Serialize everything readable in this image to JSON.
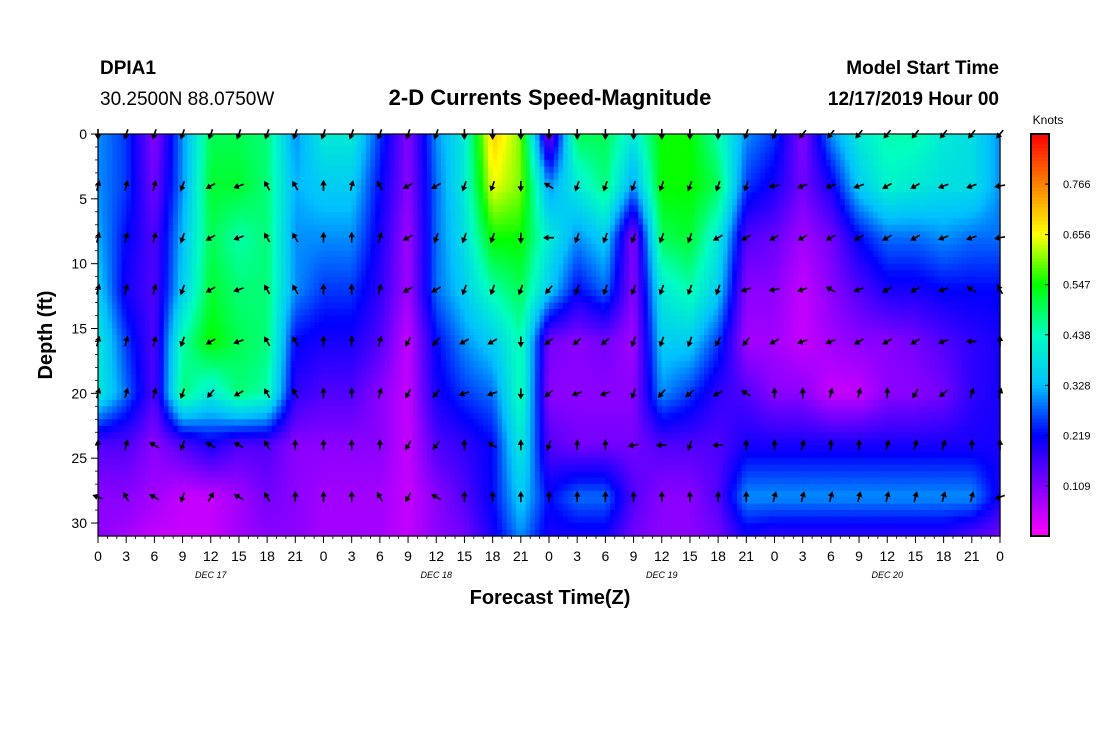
{
  "header": {
    "station": "DPIA1",
    "coords": "30.2500N 88.0750W",
    "title": "2-D Currents Speed-Magnitude",
    "start_label": "Model Start Time",
    "start_value": "12/17/2019 Hour 00"
  },
  "colorbar": {
    "units": "Knots",
    "ticks": [
      "0.766",
      "0.656",
      "0.547",
      "0.438",
      "0.328",
      "0.219",
      "0.109"
    ],
    "tick_values": [
      0.766,
      0.656,
      0.547,
      0.438,
      0.328,
      0.219,
      0.109
    ],
    "range": [
      0,
      0.875
    ],
    "colors": [
      "#ff00ff",
      "#8000ff",
      "#0000ff",
      "#00c0ff",
      "#00ffc0",
      "#00ff00",
      "#ffff00",
      "#ff8000",
      "#ff0000"
    ]
  },
  "chart_data": {
    "type": "heatmap",
    "title": "2-D Currents Speed-Magnitude",
    "xlabel": "Forecast Time(Z)",
    "ylabel": "Depth (ft)",
    "x_hours": [
      0,
      3,
      6,
      9,
      12,
      15,
      18,
      21,
      24,
      27,
      30,
      33,
      36,
      39,
      42,
      45,
      48,
      51,
      54,
      57,
      60,
      63,
      66,
      69,
      72,
      75,
      78,
      81,
      84,
      87,
      90,
      93,
      96
    ],
    "x_tick_labels": [
      "0",
      "3",
      "6",
      "9",
      "12",
      "15",
      "18",
      "21",
      "0",
      "3",
      "6",
      "9",
      "12",
      "15",
      "18",
      "21",
      "0",
      "3",
      "6",
      "9",
      "12",
      "15",
      "18",
      "21",
      "0",
      "3",
      "6",
      "9",
      "12",
      "15",
      "18",
      "21",
      "0"
    ],
    "day_labels": [
      {
        "hour": 12,
        "label": "DEC 17"
      },
      {
        "hour": 36,
        "label": "DEC 18"
      },
      {
        "hour": 60,
        "label": "DEC 19"
      },
      {
        "hour": 84,
        "label": "DEC 20"
      }
    ],
    "depth_ticks": [
      0,
      5,
      10,
      15,
      20,
      25,
      30
    ],
    "xlim": [
      0,
      96
    ],
    "ylim": [
      31,
      0
    ],
    "depths": [
      0,
      4,
      8,
      12,
      16,
      20,
      24,
      28,
      31
    ],
    "speed": [
      [
        0.3,
        0.25,
        0.1,
        0.3,
        0.5,
        0.5,
        0.48,
        0.3,
        0.4,
        0.4,
        0.25,
        0.1,
        0.3,
        0.4,
        0.7,
        0.6,
        0.1,
        0.5,
        0.5,
        0.4,
        0.55,
        0.55,
        0.45,
        0.3,
        0.25,
        0.1,
        0.3,
        0.4,
        0.45,
        0.45,
        0.4,
        0.38,
        0.3
      ],
      [
        0.3,
        0.25,
        0.12,
        0.3,
        0.52,
        0.52,
        0.48,
        0.32,
        0.35,
        0.35,
        0.22,
        0.1,
        0.28,
        0.4,
        0.65,
        0.6,
        0.3,
        0.4,
        0.48,
        0.3,
        0.55,
        0.55,
        0.5,
        0.25,
        0.2,
        0.12,
        0.2,
        0.35,
        0.42,
        0.4,
        0.38,
        0.38,
        0.3
      ],
      [
        0.32,
        0.22,
        0.15,
        0.33,
        0.5,
        0.45,
        0.48,
        0.3,
        0.3,
        0.3,
        0.2,
        0.08,
        0.28,
        0.38,
        0.55,
        0.55,
        0.4,
        0.3,
        0.35,
        0.1,
        0.5,
        0.52,
        0.4,
        0.15,
        0.13,
        0.08,
        0.12,
        0.22,
        0.28,
        0.28,
        0.3,
        0.28,
        0.28
      ],
      [
        0.35,
        0.2,
        0.15,
        0.35,
        0.52,
        0.48,
        0.48,
        0.3,
        0.25,
        0.25,
        0.18,
        0.08,
        0.28,
        0.35,
        0.45,
        0.5,
        0.35,
        0.22,
        0.28,
        0.1,
        0.4,
        0.45,
        0.35,
        0.1,
        0.1,
        0.05,
        0.1,
        0.15,
        0.2,
        0.2,
        0.22,
        0.22,
        0.22
      ],
      [
        0.4,
        0.25,
        0.15,
        0.45,
        0.55,
        0.5,
        0.48,
        0.22,
        0.2,
        0.2,
        0.15,
        0.05,
        0.22,
        0.3,
        0.35,
        0.45,
        0.12,
        0.1,
        0.12,
        0.08,
        0.35,
        0.35,
        0.25,
        0.08,
        0.08,
        0.05,
        0.08,
        0.1,
        0.1,
        0.12,
        0.15,
        0.18,
        0.2
      ],
      [
        0.4,
        0.28,
        0.15,
        0.48,
        0.4,
        0.48,
        0.45,
        0.18,
        0.15,
        0.15,
        0.1,
        0.05,
        0.2,
        0.25,
        0.28,
        0.45,
        0.1,
        0.1,
        0.1,
        0.1,
        0.3,
        0.25,
        0.18,
        0.15,
        0.1,
        0.1,
        0.05,
        0.05,
        0.1,
        0.1,
        0.12,
        0.18,
        0.2
      ],
      [
        0.15,
        0.15,
        0.1,
        0.15,
        0.2,
        0.15,
        0.15,
        0.1,
        0.1,
        0.1,
        0.1,
        0.05,
        0.15,
        0.18,
        0.22,
        0.4,
        0.15,
        0.12,
        0.12,
        0.12,
        0.15,
        0.15,
        0.15,
        0.2,
        0.2,
        0.2,
        0.2,
        0.2,
        0.2,
        0.2,
        0.2,
        0.2,
        0.2
      ],
      [
        0.1,
        0.1,
        0.08,
        0.05,
        0.05,
        0.08,
        0.12,
        0.1,
        0.08,
        0.08,
        0.08,
        0.05,
        0.1,
        0.15,
        0.22,
        0.35,
        0.22,
        0.28,
        0.28,
        0.15,
        0.1,
        0.1,
        0.15,
        0.3,
        0.3,
        0.3,
        0.3,
        0.3,
        0.3,
        0.3,
        0.3,
        0.3,
        0.2
      ],
      [
        0.1,
        0.08,
        0.05,
        0.05,
        0.05,
        0.08,
        0.1,
        0.1,
        0.08,
        0.08,
        0.08,
        0.05,
        0.1,
        0.12,
        0.2,
        0.3,
        0.2,
        0.2,
        0.2,
        0.12,
        0.1,
        0.1,
        0.12,
        0.2,
        0.18,
        0.18,
        0.18,
        0.18,
        0.18,
        0.18,
        0.18,
        0.15,
        0.12
      ]
    ],
    "arrow_depths": [
      0,
      4,
      8,
      12,
      16,
      20,
      24,
      28
    ],
    "arrow_hours": [
      0,
      3,
      6,
      9,
      12,
      15,
      18,
      21,
      24,
      27,
      30,
      33,
      36,
      39,
      42,
      45,
      48,
      51,
      54,
      57,
      60,
      63,
      66,
      69,
      72,
      75,
      78,
      81,
      84,
      87,
      90,
      93,
      96
    ],
    "arrow_dirs": [
      [
        180,
        200,
        200,
        200,
        200,
        200,
        200,
        200,
        200,
        200,
        200,
        200,
        200,
        180,
        180,
        180,
        180,
        180,
        180,
        180,
        180,
        180,
        180,
        200,
        200,
        220,
        220,
        220,
        220,
        220,
        220,
        220,
        220
      ],
      [
        15,
        15,
        15,
        200,
        240,
        250,
        330,
        330,
        0,
        15,
        330,
        240,
        240,
        200,
        200,
        180,
        300,
        200,
        200,
        200,
        200,
        200,
        200,
        200,
        260,
        250,
        250,
        250,
        240,
        240,
        250,
        250,
        260
      ],
      [
        15,
        15,
        15,
        200,
        240,
        250,
        330,
        330,
        0,
        0,
        15,
        240,
        200,
        200,
        200,
        180,
        270,
        200,
        200,
        200,
        200,
        200,
        240,
        240,
        240,
        240,
        240,
        240,
        240,
        240,
        250,
        250,
        260
      ],
      [
        15,
        15,
        15,
        200,
        240,
        250,
        330,
        330,
        0,
        0,
        15,
        240,
        240,
        200,
        200,
        200,
        220,
        200,
        200,
        200,
        200,
        200,
        200,
        250,
        260,
        250,
        300,
        250,
        240,
        240,
        250,
        300,
        330
      ],
      [
        15,
        15,
        15,
        200,
        240,
        250,
        330,
        330,
        0,
        0,
        15,
        210,
        220,
        240,
        240,
        180,
        230,
        230,
        230,
        200,
        200,
        200,
        210,
        220,
        240,
        250,
        250,
        240,
        240,
        240,
        250,
        270,
        0
      ],
      [
        15,
        15,
        15,
        200,
        220,
        240,
        330,
        330,
        0,
        0,
        15,
        210,
        220,
        250,
        250,
        180,
        230,
        250,
        250,
        200,
        220,
        230,
        240,
        300,
        0,
        0,
        15,
        15,
        0,
        210,
        230,
        15,
        15
      ],
      [
        0,
        15,
        300,
        200,
        300,
        300,
        330,
        0,
        0,
        0,
        0,
        210,
        220,
        0,
        300,
        0,
        200,
        0,
        0,
        260,
        270,
        200,
        270,
        0,
        0,
        15,
        0,
        0,
        15,
        15,
        15,
        0,
        0
      ],
      [
        290,
        330,
        300,
        200,
        30,
        300,
        330,
        0,
        0,
        0,
        330,
        210,
        300,
        0,
        0,
        0,
        0,
        0,
        0,
        0,
        0,
        0,
        0,
        0,
        15,
        15,
        15,
        15,
        15,
        15,
        15,
        15,
        250
      ]
    ]
  }
}
